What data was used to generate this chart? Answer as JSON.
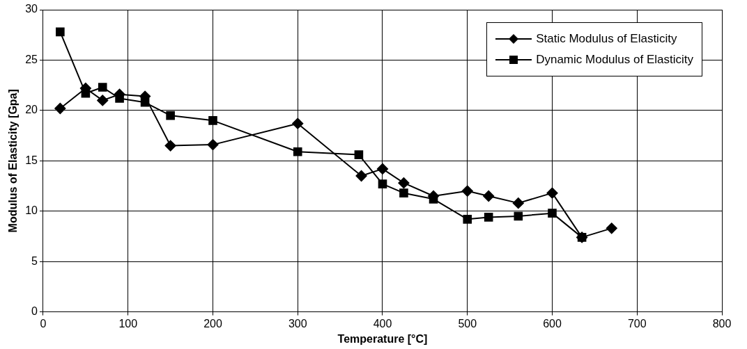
{
  "chart_data": {
    "type": "line",
    "xlabel": "Temperature [°C]",
    "ylabel": "Modulus of Elasticity [Gpa]",
    "xlim": [
      0,
      800
    ],
    "xticks": [
      0,
      100,
      200,
      300,
      400,
      500,
      600,
      700,
      800
    ],
    "ylim": [
      0,
      30
    ],
    "yticks": [
      0,
      5,
      10,
      15,
      20,
      25,
      30
    ],
    "grid": true,
    "legend": "top right",
    "line_style": "solid",
    "series": [
      {
        "name": "Static Modulus of Elasticity",
        "color": "#000000",
        "marker": "diamond",
        "x": [
          20,
          50,
          70,
          90,
          120,
          150,
          200,
          300,
          375,
          400,
          425,
          460,
          500,
          525,
          560,
          600,
          635,
          670
        ],
        "values": [
          20.2,
          22.2,
          21,
          21.6,
          21.4,
          16.5,
          16.6,
          18.7,
          13.5,
          14.2,
          12.8,
          11.5,
          12,
          11.5,
          10.8,
          11.8,
          7.4,
          8.3
        ]
      },
      {
        "name": "Dynamic Modulus of Elasticity",
        "color": "#000000",
        "marker": "square",
        "x": [
          20,
          50,
          70,
          90,
          120,
          150,
          200,
          300,
          372,
          400,
          425,
          460,
          500,
          525,
          560,
          600,
          635
        ],
        "values": [
          27.8,
          21.7,
          22.3,
          21.2,
          20.8,
          19.5,
          19,
          15.9,
          15.6,
          12.7,
          11.8,
          11.2,
          9.2,
          9.4,
          9.5,
          9.8,
          7.4
        ]
      }
    ]
  }
}
